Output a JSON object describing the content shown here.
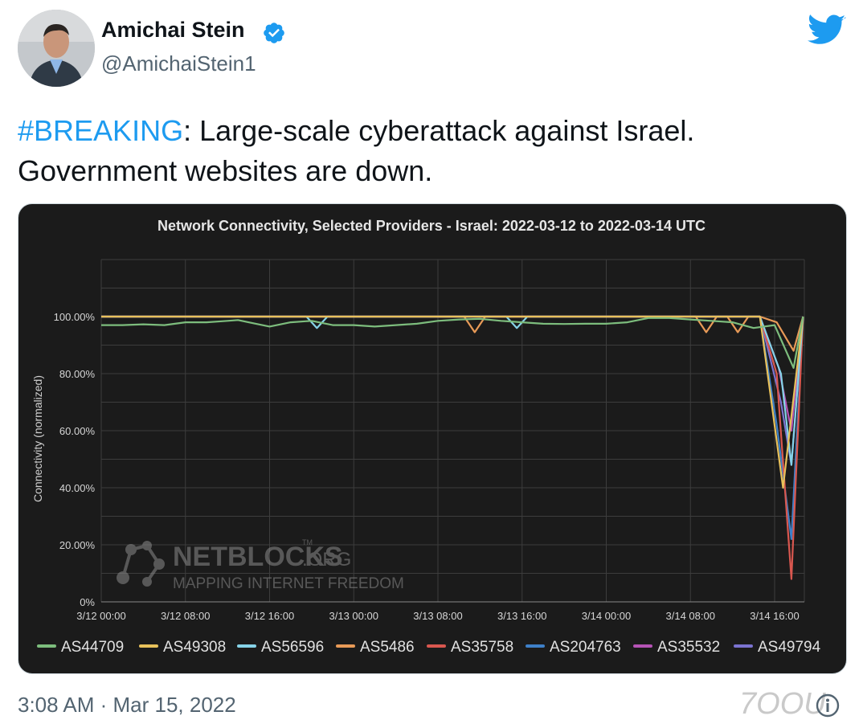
{
  "tweet": {
    "author_name": "Amichai Stein",
    "handle": "@AmichaiStein1",
    "hashtag": "#BREAKING",
    "text_line1_rest": ": Large-scale cyberattack against Israel.",
    "text_line2": "Government websites are down.",
    "timestamp": "3:08 AM · Mar 15, 2022"
  },
  "icons": [
    "verified-badge-icon",
    "twitter-bird-icon",
    "info-icon"
  ],
  "colors": {
    "hashtag": "#1d9bf0",
    "chart_bg": "#1b1b1b",
    "verified": "#1d9bf0",
    "bird": "#1d9bf0"
  },
  "watermark": {
    "line1": "NETBLOCKS",
    "org": ".ORG",
    "tm": "TM",
    "line2": "MAPPING INTERNET FREEDOM"
  },
  "corner_watermark": "7OOU",
  "chart_data": {
    "type": "line",
    "title": "Network Connectivity, Selected Providers - Israel: 2022-03-12 to 2022-03-14 UTC",
    "xlabel": "",
    "ylabel": "Connectivity (normalized)",
    "x_ticks": [
      "3/12 00:00",
      "3/12 08:00",
      "3/12 16:00",
      "3/13 00:00",
      "3/13 08:00",
      "3/13 16:00",
      "3/14 00:00",
      "3/14 08:00",
      "3/14 16:00"
    ],
    "y_ticks": [
      "0%",
      "20.00%",
      "40.00%",
      "60.00%",
      "80.00%",
      "100.00%"
    ],
    "ylim": [
      0,
      120
    ],
    "xlim_hours": [
      0,
      66.7
    ],
    "grid": true,
    "legend_position": "bottom",
    "series": [
      {
        "name": "AS44709",
        "color": "#7dbd7d",
        "points": [
          [
            0,
            97
          ],
          [
            2,
            97
          ],
          [
            4,
            97.3
          ],
          [
            6,
            97
          ],
          [
            8,
            98
          ],
          [
            10,
            98
          ],
          [
            12,
            98.5
          ],
          [
            13,
            98.8
          ],
          [
            14,
            98
          ],
          [
            16,
            96.5
          ],
          [
            18,
            98
          ],
          [
            20,
            98.5
          ],
          [
            22,
            97
          ],
          [
            24,
            97
          ],
          [
            26,
            96.5
          ],
          [
            28,
            97
          ],
          [
            30,
            97.5
          ],
          [
            32,
            98.5
          ],
          [
            34,
            99
          ],
          [
            36,
            99.2
          ],
          [
            38,
            98.5
          ],
          [
            40,
            98
          ],
          [
            42,
            97.5
          ],
          [
            44,
            97.4
          ],
          [
            46,
            97.5
          ],
          [
            48,
            97.5
          ],
          [
            50,
            98
          ],
          [
            52,
            99.5
          ],
          [
            54,
            99.5
          ],
          [
            56,
            99
          ],
          [
            58,
            98.5
          ],
          [
            60,
            98
          ],
          [
            62,
            96
          ],
          [
            64,
            97
          ],
          [
            65.8,
            82
          ],
          [
            66.7,
            100
          ]
        ]
      },
      {
        "name": "AS49308",
        "color": "#e8c15b",
        "points": [
          [
            0,
            100
          ],
          [
            62.6,
            100
          ],
          [
            64.8,
            40
          ],
          [
            66.7,
            100
          ]
        ]
      },
      {
        "name": "AS56596",
        "color": "#86d3e8",
        "points": [
          [
            0,
            100
          ],
          [
            19.5,
            100
          ],
          [
            20.5,
            96
          ],
          [
            21.5,
            100
          ],
          [
            38.5,
            100
          ],
          [
            39.5,
            96
          ],
          [
            40.5,
            100
          ],
          [
            62.6,
            100
          ],
          [
            64.6,
            80
          ],
          [
            65.6,
            48
          ],
          [
            66.7,
            100
          ]
        ]
      },
      {
        "name": "AS5486",
        "color": "#e89a57",
        "points": [
          [
            0,
            100
          ],
          [
            34.5,
            100
          ],
          [
            35.5,
            94.5
          ],
          [
            36.5,
            100
          ],
          [
            56.5,
            100
          ],
          [
            57.5,
            94.5
          ],
          [
            58.5,
            100
          ],
          [
            59.5,
            100
          ],
          [
            60.5,
            94.5
          ],
          [
            61.5,
            100
          ],
          [
            62.6,
            100
          ],
          [
            64.2,
            98
          ],
          [
            65.8,
            88
          ],
          [
            66.7,
            100
          ]
        ]
      },
      {
        "name": "AS35758",
        "color": "#d9574f",
        "points": [
          [
            0,
            100
          ],
          [
            62.6,
            100
          ],
          [
            64.2,
            80
          ],
          [
            65.6,
            8
          ],
          [
            66.7,
            100
          ]
        ]
      },
      {
        "name": "AS204763",
        "color": "#3e80c8",
        "points": [
          [
            0,
            100
          ],
          [
            62.6,
            100
          ],
          [
            64.2,
            62
          ],
          [
            65.6,
            22
          ],
          [
            66.7,
            100
          ]
        ]
      },
      {
        "name": "AS35532",
        "color": "#b553b5",
        "points": [
          [
            0,
            100
          ],
          [
            62.6,
            100
          ],
          [
            64.4,
            82
          ],
          [
            65.6,
            60
          ],
          [
            66.7,
            100
          ]
        ]
      },
      {
        "name": "AS49794",
        "color": "#7b73d0",
        "points": [
          [
            0,
            100
          ],
          [
            62.6,
            100
          ],
          [
            64.6,
            70
          ],
          [
            65.6,
            48
          ],
          [
            66.7,
            100
          ]
        ]
      }
    ]
  }
}
